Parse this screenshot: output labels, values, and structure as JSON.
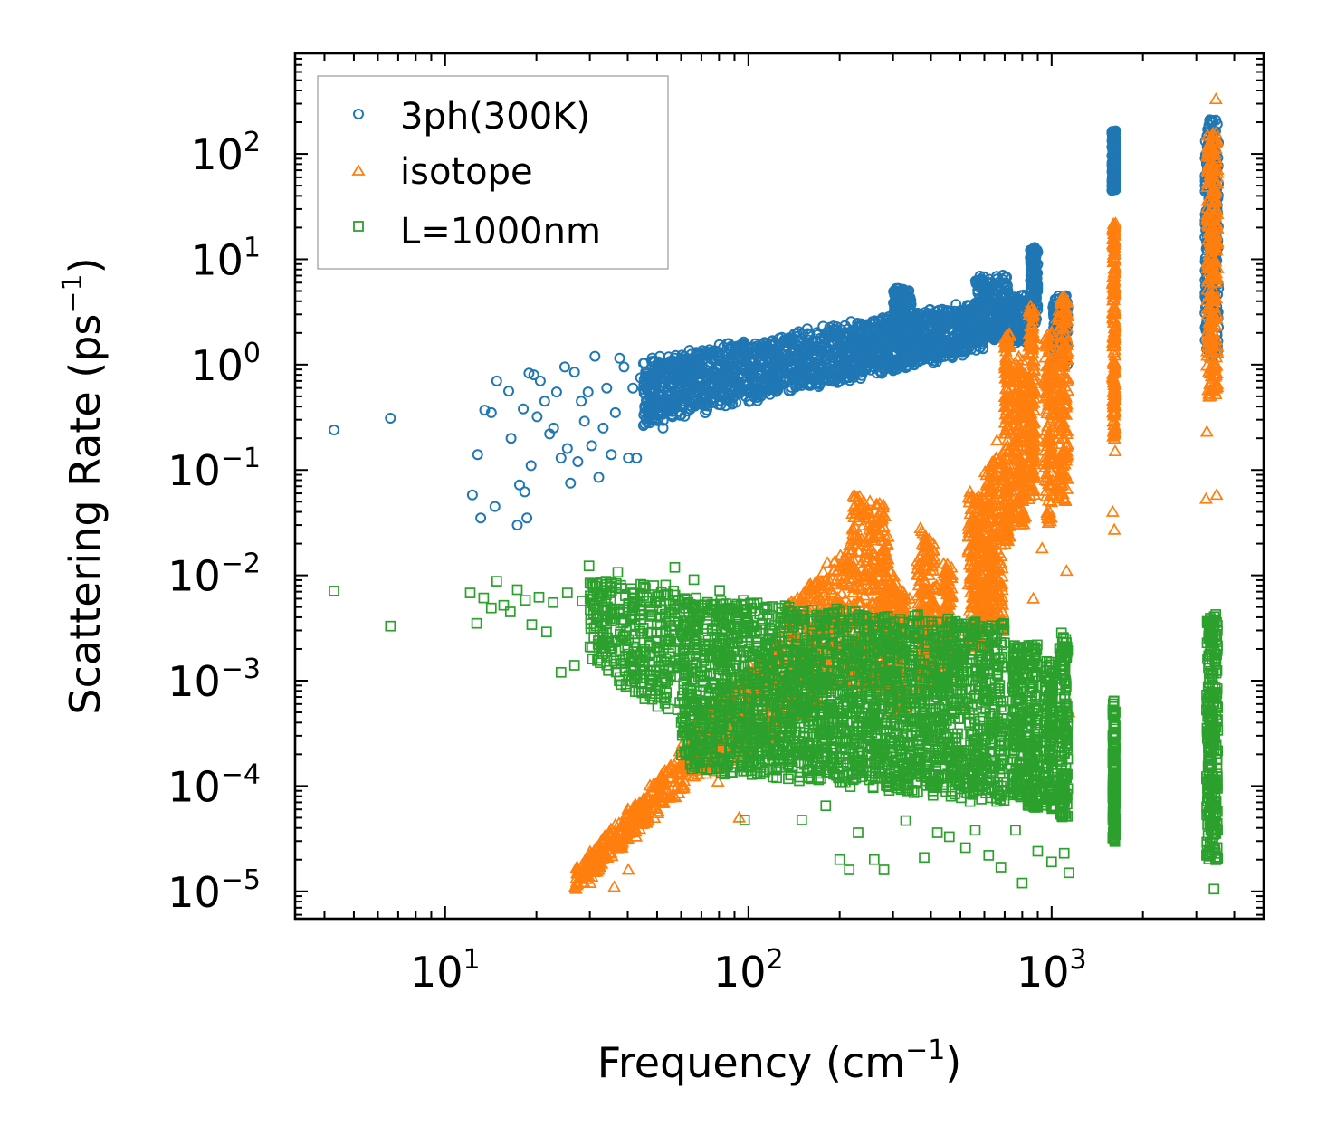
{
  "chart_data": {
    "type": "scatter",
    "xscale": "log",
    "yscale": "log",
    "xlim": [
      3.2,
      5000
    ],
    "ylim": [
      5.5e-06,
      900
    ],
    "xlabel": "Frequency (cm",
    "xlabel_sup": "−1",
    "xlabel_end": ")",
    "ylabel": "Scattering Rate (ps",
    "ylabel_sup": "−1",
    "ylabel_end": ")",
    "grid": false,
    "legend_position": "top-left",
    "x_ticks": [
      {
        "value": 10,
        "base": "10",
        "exp": "1"
      },
      {
        "value": 100,
        "base": "10",
        "exp": "2"
      },
      {
        "value": 1000,
        "base": "10",
        "exp": "3"
      }
    ],
    "y_ticks": [
      {
        "value": 1e-05,
        "base": "10",
        "exp": "−5"
      },
      {
        "value": 0.0001,
        "base": "10",
        "exp": "−4"
      },
      {
        "value": 0.001,
        "base": "10",
        "exp": "−3"
      },
      {
        "value": 0.01,
        "base": "10",
        "exp": "−2"
      },
      {
        "value": 0.1,
        "base": "10",
        "exp": "−1"
      },
      {
        "value": 1,
        "base": "10",
        "exp": "0"
      },
      {
        "value": 10,
        "base": "10",
        "exp": "1"
      },
      {
        "value": 100,
        "base": "10",
        "exp": "2"
      }
    ],
    "series": [
      {
        "name": "3ph(300K)",
        "marker": "circle",
        "color": "#1f77b4",
        "points": [
          [
            4.3,
            0.24
          ],
          [
            6.6,
            0.31
          ],
          [
            12.3,
            0.058
          ],
          [
            12.8,
            0.14
          ],
          [
            13.1,
            0.035
          ],
          [
            13.5,
            0.37
          ],
          [
            14.2,
            0.35
          ],
          [
            14.6,
            0.045
          ],
          [
            14.8,
            0.7
          ],
          [
            16.2,
            0.56
          ],
          [
            16.5,
            0.2
          ],
          [
            17.3,
            0.03
          ],
          [
            17.6,
            0.072
          ],
          [
            18.1,
            0.38
          ],
          [
            18.3,
            0.062
          ],
          [
            18.6,
            0.035
          ],
          [
            18.9,
            0.83
          ],
          [
            19.2,
            0.11
          ],
          [
            19.6,
            0.8
          ],
          [
            20.1,
            0.32
          ],
          [
            20.6,
            0.7
          ],
          [
            21.3,
            0.45
          ],
          [
            22.1,
            0.22
          ],
          [
            22.8,
            0.25
          ],
          [
            23.3,
            0.55
          ],
          [
            24.1,
            0.13
          ],
          [
            24.8,
            0.95
          ],
          [
            25.3,
            0.16
          ],
          [
            25.9,
            0.075
          ],
          [
            26.7,
            0.85
          ],
          [
            27.4,
            0.12
          ],
          [
            28.1,
            0.45
          ],
          [
            28.8,
            0.29
          ],
          [
            29.6,
            0.55
          ],
          [
            30.4,
            0.17
          ],
          [
            31.2,
            1.2
          ],
          [
            32.1,
            0.085
          ],
          [
            33.2,
            0.25
          ],
          [
            34.1,
            0.6
          ],
          [
            35.3,
            0.14
          ],
          [
            36.4,
            0.35
          ],
          [
            37.6,
            1.15
          ],
          [
            38.9,
            0.95
          ],
          [
            40.2,
            0.13
          ],
          [
            41.6,
            0.6
          ],
          [
            42.8,
            0.13
          ],
          [
            44.1,
            0.75
          ],
          [
            45.6,
            0.38
          ],
          [
            47.2,
            0.28
          ],
          [
            48.9,
            1.05
          ],
          [
            50.6,
            0.45
          ],
          [
            52.3,
            0.25
          ],
          [
            54.1,
            0.85
          ],
          [
            56.2,
            0.32
          ],
          [
            58.4,
            0.6
          ]
        ]
      },
      {
        "name": "isotope",
        "marker": "triangle",
        "color": "#ff7f0e",
        "points": [
          [
            26.8,
            1.1e-05
          ],
          [
            28.3,
            1.4e-05
          ],
          [
            30.1,
            1.2e-05
          ],
          [
            32.4,
            1.7e-05
          ],
          [
            34.2,
            2.1e-05
          ],
          [
            36.1,
            1.1e-05
          ],
          [
            38.3,
            2.6e-05
          ],
          [
            40.2,
            1.6e-05
          ],
          [
            42.6,
            3.3e-05
          ],
          [
            46.1,
            4.5e-05
          ],
          [
            50.3,
            5.5e-05
          ],
          [
            55.2,
            0.00012
          ],
          [
            60.6,
            0.00025
          ],
          [
            66.3,
            0.00038
          ],
          [
            72.1,
            0.00016
          ],
          [
            79.4,
            0.00011
          ],
          [
            85.2,
            0.00048
          ],
          [
            93.3,
            5e-05
          ],
          [
            108,
            0.00047
          ],
          [
            132,
            0.0031
          ],
          [
            150,
            0.0058
          ],
          [
            180,
            0.009
          ],
          [
            220,
            0.022
          ],
          [
            240,
            0.05
          ],
          [
            262,
            0.028
          ],
          [
            298,
            0.008
          ],
          [
            340,
            0.006
          ],
          [
            395,
            0.022
          ],
          [
            430,
            0.0043
          ],
          [
            480,
            0.0028
          ],
          [
            520,
            0.00053
          ],
          [
            560,
            0.028
          ],
          [
            610,
            0.065
          ],
          [
            660,
            0.19
          ],
          [
            705,
            1.0
          ],
          [
            745,
            0.0003
          ],
          [
            800,
            0.2
          ],
          [
            850,
            1.5
          ],
          [
            870,
            0.006
          ],
          [
            905,
            0.2
          ],
          [
            930,
            0.018
          ],
          [
            1010,
            0.5
          ],
          [
            1070,
            3.8
          ],
          [
            1100,
            0.25
          ],
          [
            1120,
            0.011
          ],
          [
            1140,
            0.0005
          ],
          [
            1610,
            0.027
          ],
          [
            1590,
            0.04
          ],
          [
            1620,
            0.15
          ],
          [
            1600,
            2.5
          ],
          [
            3230,
            0.053
          ],
          [
            3250,
            0.23
          ],
          [
            3310,
            8.5
          ],
          [
            3420,
            150
          ],
          [
            3480,
            330
          ],
          [
            3520,
            1.3
          ],
          [
            3500,
            0.058
          ]
        ]
      },
      {
        "name": "L=1000nm",
        "marker": "square",
        "color": "#2ca02c",
        "points": [
          [
            4.3,
            0.0071
          ],
          [
            6.6,
            0.0033
          ],
          [
            12.1,
            0.0068
          ],
          [
            12.7,
            0.0035
          ],
          [
            13.4,
            0.0061
          ],
          [
            14.2,
            0.0049
          ],
          [
            14.8,
            0.0088
          ],
          [
            15.6,
            0.0052
          ],
          [
            16.4,
            0.0045
          ],
          [
            17.3,
            0.0073
          ],
          [
            18.4,
            0.0058
          ],
          [
            19.3,
            0.0034
          ],
          [
            20.4,
            0.0062
          ],
          [
            21.6,
            0.0029
          ],
          [
            22.7,
            0.0055
          ],
          [
            24.1,
            0.0012
          ],
          [
            25.3,
            0.0068
          ],
          [
            26.7,
            0.0014
          ],
          [
            28.3,
            0.0057
          ],
          [
            29.8,
            0.0123
          ],
          [
            31.5,
            0.0041
          ],
          [
            33.2,
            0.0018
          ],
          [
            35.1,
            0.0059
          ],
          [
            37.1,
            0.0107
          ],
          [
            39.3,
            0.0017
          ],
          [
            41.6,
            0.0046
          ],
          [
            44.2,
            0.0082
          ],
          [
            47.2,
            0.0015
          ],
          [
            50.1,
            0.0063
          ],
          [
            53.4,
            0.0022
          ],
          [
            57.2,
            0.0119
          ],
          [
            61.3,
            0.00061
          ],
          [
            66.1,
            0.0091
          ],
          [
            71.2,
            0.00035
          ],
          [
            80.4,
            0.0072
          ],
          [
            96.1,
            0.0058
          ],
          [
            97.2,
            4.75e-05
          ],
          [
            110,
            0.00015
          ],
          [
            150,
            4.75e-05
          ],
          [
            180,
            6.5e-05
          ],
          [
            200,
            2e-05
          ],
          [
            215,
            1.6e-05
          ],
          [
            230,
            3.6e-05
          ],
          [
            260,
            2e-05
          ],
          [
            280,
            1.6e-05
          ],
          [
            330,
            4.7e-05
          ],
          [
            380,
            2.1e-05
          ],
          [
            420,
            3.6e-05
          ],
          [
            460,
            3.3e-05
          ],
          [
            520,
            2.6e-05
          ],
          [
            560,
            3.8e-05
          ],
          [
            620,
            2.2e-05
          ],
          [
            680,
            1.7e-05
          ],
          [
            760,
            3.8e-05
          ],
          [
            800,
            1.2e-05
          ],
          [
            900,
            2.4e-05
          ],
          [
            1000,
            1.9e-05
          ],
          [
            1100,
            2.3e-05
          ],
          [
            1140,
            1.5e-05
          ],
          [
            3240,
            2.2e-05
          ],
          [
            3320,
            4.3e-05
          ],
          [
            3430,
            1.05e-05
          ]
        ]
      }
    ],
    "bands": [
      {
        "series": 0,
        "x0": 45,
        "x1": 600,
        "y0lo": 0.28,
        "y0hi": 1.1,
        "y1lo": 1.4,
        "y1hi": 4.0,
        "n": 1800,
        "jitter": 0.25
      },
      {
        "series": 0,
        "x0": 300,
        "x1": 345,
        "y0lo": 1.5,
        "y0hi": 5.2,
        "y1lo": 1.5,
        "y1hi": 5.2,
        "n": 200,
        "jitter": 0.15
      },
      {
        "series": 0,
        "x0": 560,
        "x1": 720,
        "y0lo": 1.8,
        "y0hi": 7.0,
        "y1lo": 1.8,
        "y1hi": 7.0,
        "n": 220,
        "jitter": 0.15
      },
      {
        "series": 0,
        "x0": 720,
        "x1": 830,
        "y0lo": 1.6,
        "y0hi": 4.5,
        "y1lo": 1.6,
        "y1hi": 4.5,
        "n": 120,
        "jitter": 0.15
      },
      {
        "series": 0,
        "x0": 850,
        "x1": 900,
        "y0lo": 2.5,
        "y0hi": 13.0,
        "y1lo": 2.5,
        "y1hi": 13.0,
        "n": 160,
        "jitter": 0.1
      },
      {
        "series": 0,
        "x0": 1010,
        "x1": 1130,
        "y0lo": 1.0,
        "y0hi": 4.5,
        "y1lo": 1.0,
        "y1hi": 4.5,
        "n": 140,
        "jitter": 0.1
      },
      {
        "series": 0,
        "x0": 1580,
        "x1": 1630,
        "y0lo": 45,
        "y0hi": 165,
        "y1lo": 45,
        "y1hi": 165,
        "n": 160,
        "jitter": 0.05
      },
      {
        "series": 0,
        "x0": 3200,
        "x1": 3550,
        "y0lo": 1.2,
        "y0hi": 220,
        "y1lo": 1.2,
        "y1hi": 220,
        "n": 260,
        "jitter": 0.05
      },
      {
        "series": 1,
        "x0": 27,
        "x1": 65,
        "y0lo": 1e-05,
        "y0hi": 1.6e-05,
        "y1lo": 0.00011,
        "y1hi": 0.00028,
        "n": 320,
        "jitter": 0.2
      },
      {
        "series": 1,
        "x0": 65,
        "x1": 130,
        "y0lo": 0.00011,
        "y0hi": 0.00042,
        "y1lo": 0.0003,
        "y1hi": 0.0028,
        "n": 380,
        "jitter": 0.25
      },
      {
        "series": 1,
        "x0": 130,
        "x1": 220,
        "y0lo": 0.00035,
        "y0hi": 0.0045,
        "y1lo": 0.0012,
        "y1hi": 0.022,
        "n": 380,
        "jitter": 0.2
      },
      {
        "series": 1,
        "x0": 220,
        "x1": 290,
        "y0lo": 0.0008,
        "y0hi": 0.06,
        "y1lo": 0.0008,
        "y1hi": 0.045,
        "n": 360,
        "jitter": 0.15
      },
      {
        "series": 1,
        "x0": 290,
        "x1": 330,
        "y0lo": 0.0005,
        "y0hi": 0.012,
        "y1lo": 0.0005,
        "y1hi": 0.007,
        "n": 180,
        "jitter": 0.1
      },
      {
        "series": 1,
        "x0": 360,
        "x1": 420,
        "y0lo": 0.0008,
        "y0hi": 0.03,
        "y1lo": 0.0008,
        "y1hi": 0.02,
        "n": 200,
        "jitter": 0.1
      },
      {
        "series": 1,
        "x0": 440,
        "x1": 470,
        "y0lo": 0.001,
        "y0hi": 0.015,
        "y1lo": 0.001,
        "y1hi": 0.012,
        "n": 100,
        "jitter": 0.1
      },
      {
        "series": 1,
        "x0": 530,
        "x1": 600,
        "y0lo": 0.002,
        "y0hi": 0.07,
        "y1lo": 0.002,
        "y1hi": 0.05,
        "n": 220,
        "jitter": 0.1
      },
      {
        "series": 1,
        "x0": 600,
        "x1": 690,
        "y0lo": 0.003,
        "y0hi": 0.1,
        "y1lo": 0.003,
        "y1hi": 0.16,
        "n": 220,
        "jitter": 0.1
      },
      {
        "series": 1,
        "x0": 700,
        "x1": 730,
        "y0lo": 0.02,
        "y0hi": 2.0,
        "y1lo": 0.02,
        "y1hi": 2.0,
        "n": 180,
        "jitter": 0.08
      },
      {
        "series": 1,
        "x0": 760,
        "x1": 820,
        "y0lo": 0.03,
        "y0hi": 1.2,
        "y1lo": 0.03,
        "y1hi": 1.2,
        "n": 160,
        "jitter": 0.08
      },
      {
        "series": 1,
        "x0": 840,
        "x1": 880,
        "y0lo": 0.05,
        "y0hi": 3.5,
        "y1lo": 0.05,
        "y1hi": 3.5,
        "n": 160,
        "jitter": 0.08
      },
      {
        "series": 1,
        "x0": 950,
        "x1": 1010,
        "y0lo": 0.03,
        "y0hi": 2.0,
        "y1lo": 0.03,
        "y1hi": 2.0,
        "n": 140,
        "jitter": 0.08
      },
      {
        "series": 1,
        "x0": 1050,
        "x1": 1130,
        "y0lo": 0.05,
        "y0hi": 4.5,
        "y1lo": 0.05,
        "y1hi": 4.5,
        "n": 180,
        "jitter": 0.06
      },
      {
        "series": 1,
        "x0": 1590,
        "x1": 1625,
        "y0lo": 0.2,
        "y0hi": 22,
        "y1lo": 0.2,
        "y1hi": 22,
        "n": 180,
        "jitter": 0.05
      },
      {
        "series": 1,
        "x0": 3250,
        "x1": 3530,
        "y0lo": 0.5,
        "y0hi": 160,
        "y1lo": 0.5,
        "y1hi": 160,
        "n": 280,
        "jitter": 0.05
      },
      {
        "series": 2,
        "x0": 30,
        "x1": 60,
        "y0lo": 0.0015,
        "y0hi": 0.009,
        "y1lo": 0.0004,
        "y1hi": 0.008,
        "n": 320,
        "jitter": 0.15
      },
      {
        "series": 2,
        "x0": 60,
        "x1": 700,
        "y0lo": 0.00015,
        "y0hi": 0.006,
        "y1lo": 7e-05,
        "y1hi": 0.0035,
        "n": 2600,
        "jitter": 0.2
      },
      {
        "series": 2,
        "x0": 740,
        "x1": 800,
        "y0lo": 8e-05,
        "y0hi": 0.0022,
        "y1lo": 8e-05,
        "y1hi": 0.0022,
        "n": 160,
        "jitter": 0.06
      },
      {
        "series": 2,
        "x0": 830,
        "x1": 900,
        "y0lo": 6e-05,
        "y0hi": 0.0022,
        "y1lo": 6e-05,
        "y1hi": 0.0022,
        "n": 160,
        "jitter": 0.06
      },
      {
        "series": 2,
        "x0": 950,
        "x1": 1010,
        "y0lo": 6e-05,
        "y0hi": 0.0016,
        "y1lo": 6e-05,
        "y1hi": 0.0016,
        "n": 140,
        "jitter": 0.06
      },
      {
        "series": 2,
        "x0": 1060,
        "x1": 1130,
        "y0lo": 5e-05,
        "y0hi": 0.0028,
        "y1lo": 5e-05,
        "y1hi": 0.0028,
        "n": 160,
        "jitter": 0.06
      },
      {
        "series": 2,
        "x0": 1590,
        "x1": 1625,
        "y0lo": 3e-05,
        "y0hi": 0.00065,
        "y1lo": 3e-05,
        "y1hi": 0.00065,
        "n": 160,
        "jitter": 0.05
      },
      {
        "series": 2,
        "x0": 3240,
        "x1": 3530,
        "y0lo": 2e-05,
        "y0hi": 0.0042,
        "y1lo": 2e-05,
        "y1hi": 0.0042,
        "n": 280,
        "jitter": 0.05
      }
    ]
  }
}
